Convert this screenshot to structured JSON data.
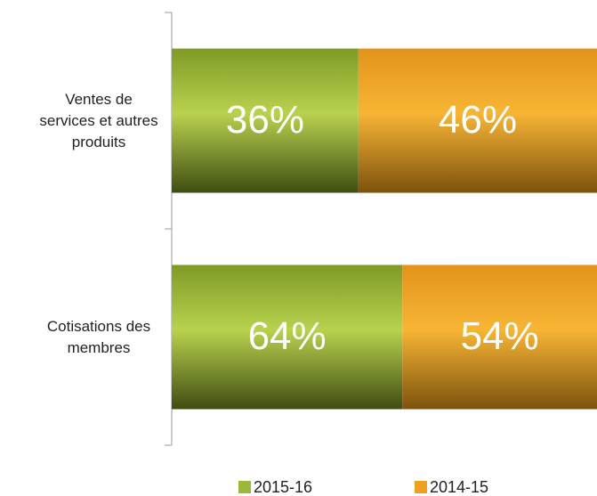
{
  "chart_data": {
    "type": "bar",
    "orientation": "horizontal",
    "stacking": "percent",
    "categories": [
      "Ventes de services et autres produits",
      "Cotisations  des membres"
    ],
    "series": [
      {
        "name": "2015-16",
        "color": "#9bb83a",
        "values": [
          36,
          64
        ],
        "value_labels": [
          "36%",
          "64%"
        ]
      },
      {
        "name": "2014-15",
        "color": "#f0a020",
        "values": [
          46,
          54
        ],
        "value_labels": [
          "46%",
          "54%"
        ]
      }
    ],
    "legend": "bottom"
  }
}
